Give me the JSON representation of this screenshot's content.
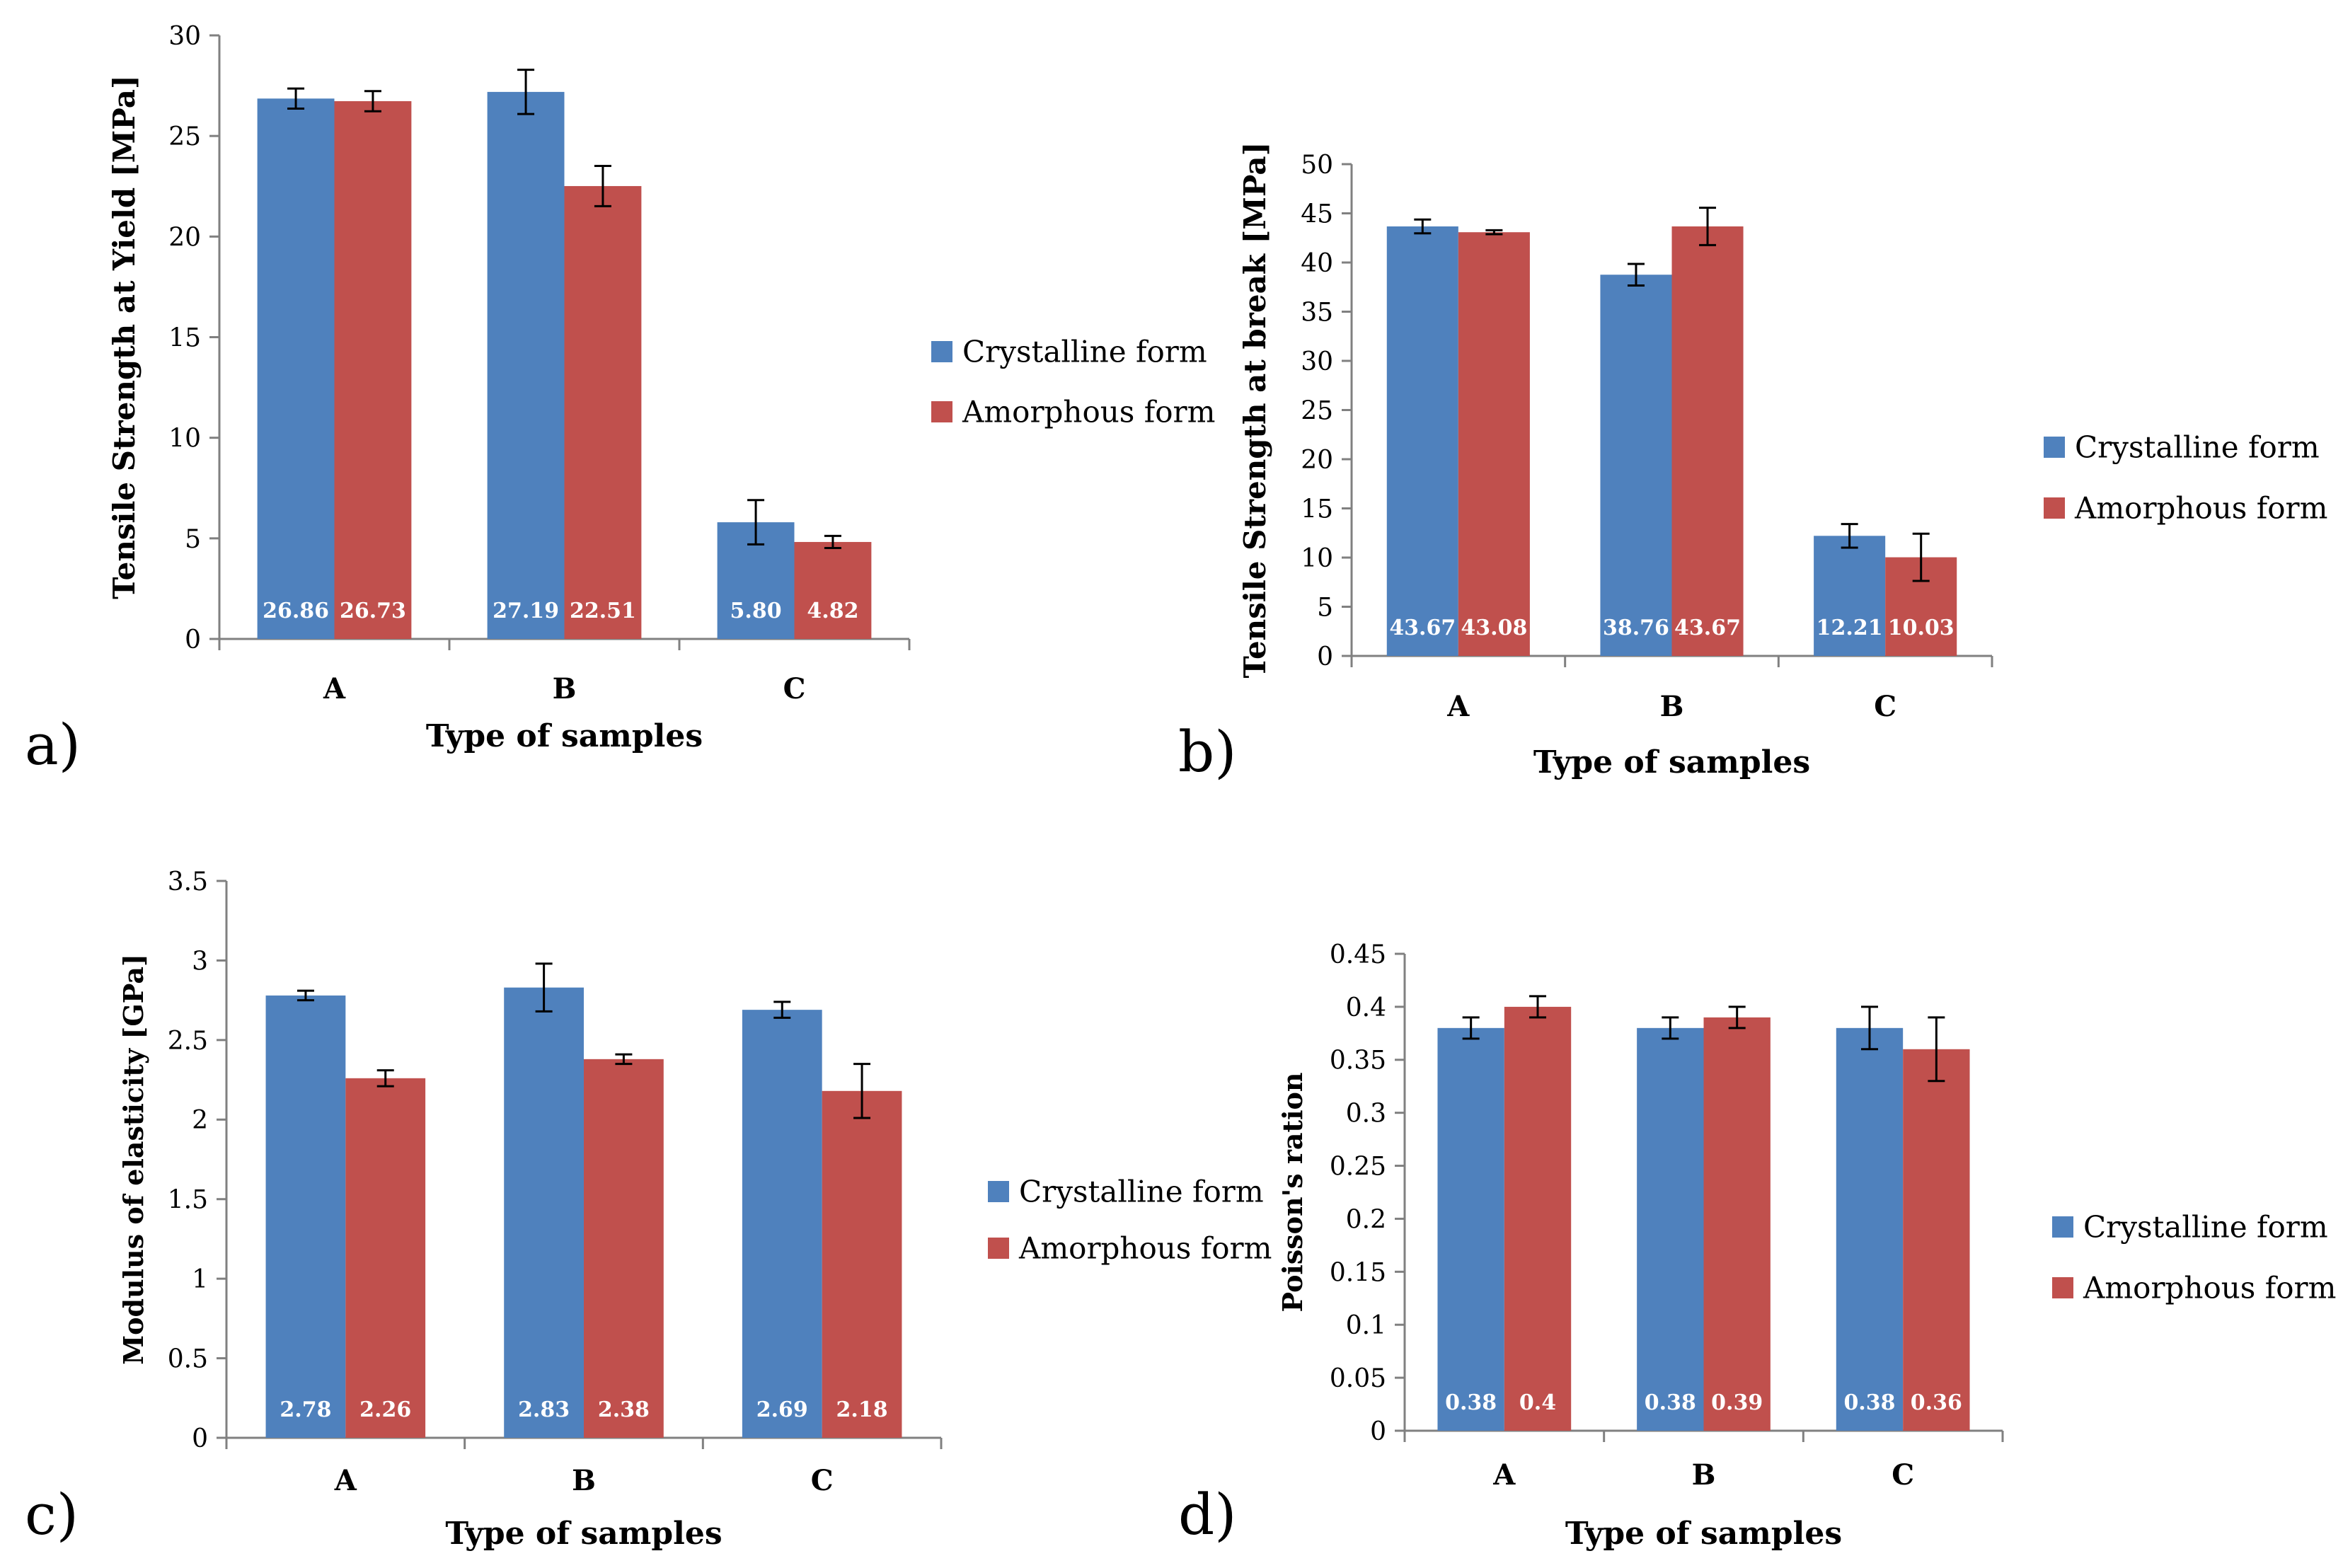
{
  "colors": {
    "crystalline": "#4F81BD",
    "amorphous": "#C0504D",
    "axis": "#808080",
    "text": "#000000",
    "bar_label": "#ffffff"
  },
  "chart_data": [
    {
      "type": "bar",
      "panel_label": "a)",
      "categories": [
        "A",
        "B",
        "C"
      ],
      "series": [
        {
          "name": "Crystalline form",
          "values": [
            26.86,
            27.19,
            5.8
          ],
          "value_labels": [
            "26.86",
            "27.19",
            "5.80"
          ],
          "errors": [
            0.5,
            1.1,
            1.1
          ]
        },
        {
          "name": "Amorphous form",
          "values": [
            26.73,
            22.51,
            4.82
          ],
          "value_labels": [
            "26.73",
            "22.51",
            "4.82"
          ],
          "errors": [
            0.5,
            1.0,
            0.3
          ]
        }
      ],
      "title": "",
      "xlabel": "Type of samples",
      "ylabel": "Tensile Strength at Yield [MPa]",
      "ylim": [
        0,
        30
      ],
      "yticks": [
        0,
        5,
        10,
        15,
        20,
        25,
        30
      ],
      "ytick_labels": [
        "0",
        "5",
        "10",
        "15",
        "20",
        "25",
        "30"
      ],
      "legend": "right"
    },
    {
      "type": "bar",
      "panel_label": "b)",
      "categories": [
        "A",
        "B",
        "C"
      ],
      "series": [
        {
          "name": "Crystalline form",
          "values": [
            43.67,
            38.76,
            12.21
          ],
          "value_labels": [
            "43.67",
            "38.76",
            "12.21"
          ],
          "errors": [
            0.7,
            1.1,
            1.2
          ]
        },
        {
          "name": "Amorphous form",
          "values": [
            43.08,
            43.67,
            10.03
          ],
          "value_labels": [
            "43.08",
            "43.67",
            "10.03"
          ],
          "errors": [
            0.2,
            1.9,
            2.4
          ]
        }
      ],
      "title": "",
      "xlabel": "Type of samples",
      "ylabel": "Tensile Strength at break [MPa]",
      "ylim": [
        0,
        50
      ],
      "yticks": [
        0,
        5,
        10,
        15,
        20,
        25,
        30,
        35,
        40,
        45,
        50
      ],
      "ytick_labels": [
        "0",
        "5",
        "10",
        "15",
        "20",
        "25",
        "30",
        "35",
        "40",
        "45",
        "50"
      ],
      "legend": "right"
    },
    {
      "type": "bar",
      "panel_label": "c)",
      "categories": [
        "A",
        "B",
        "C"
      ],
      "series": [
        {
          "name": "Crystalline form",
          "values": [
            2.78,
            2.83,
            2.69
          ],
          "value_labels": [
            "2.78",
            "2.83",
            "2.69"
          ],
          "errors": [
            0.03,
            0.15,
            0.05
          ]
        },
        {
          "name": "Amorphous form",
          "values": [
            2.26,
            2.38,
            2.18
          ],
          "value_labels": [
            "2.26",
            "2.38",
            "2.18"
          ],
          "errors": [
            0.05,
            0.03,
            0.17
          ]
        }
      ],
      "title": "",
      "xlabel": "Type of samples",
      "ylabel": "Modulus of elasticity [GPa]",
      "ylim": [
        0,
        3.5
      ],
      "yticks": [
        0,
        0.5,
        1,
        1.5,
        2,
        2.5,
        3,
        3.5
      ],
      "ytick_labels": [
        "0",
        "0.5",
        "1",
        "1.5",
        "2",
        "2.5",
        "3",
        "3.5"
      ],
      "legend": "right"
    },
    {
      "type": "bar",
      "panel_label": "d)",
      "categories": [
        "A",
        "B",
        "C"
      ],
      "series": [
        {
          "name": "Crystalline form",
          "values": [
            0.38,
            0.38,
            0.38
          ],
          "value_labels": [
            "0.38",
            "0.38",
            "0.38"
          ],
          "errors": [
            0.01,
            0.01,
            0.02
          ]
        },
        {
          "name": "Amorphous form",
          "values": [
            0.4,
            0.39,
            0.36
          ],
          "value_labels": [
            "0.4",
            "0.39",
            "0.36"
          ],
          "errors": [
            0.01,
            0.01,
            0.03
          ]
        }
      ],
      "title": "",
      "xlabel": "Type of samples",
      "ylabel": "Poisson's ration",
      "ylim": [
        0,
        0.45
      ],
      "yticks": [
        0,
        0.05,
        0.1,
        0.15,
        0.2,
        0.25,
        0.3,
        0.35,
        0.4,
        0.45
      ],
      "ytick_labels": [
        "0",
        "0.05",
        "0.1",
        "0.15",
        "0.2",
        "0.25",
        "0.3",
        "0.35",
        "0.4",
        "0.45"
      ],
      "legend": "right"
    }
  ]
}
